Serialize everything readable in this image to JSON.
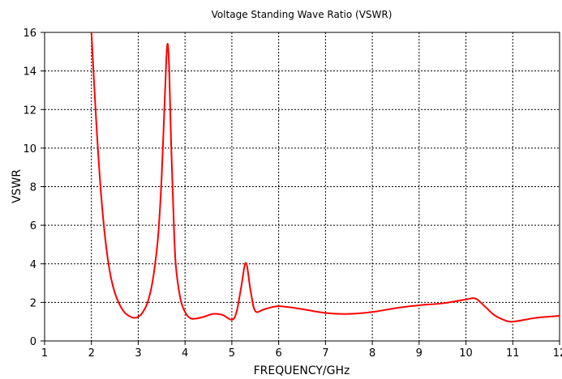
{
  "chart_data": {
    "type": "line",
    "title": "Voltage Standing Wave Ratio (VSWR)",
    "xlabel": "FREQUENCY/GHz",
    "ylabel": "VSWR",
    "xlim": [
      1,
      12
    ],
    "ylim": [
      0,
      16
    ],
    "x_ticks": [
      "1",
      "2",
      "3",
      "4",
      "5",
      "6",
      "7",
      "8",
      "9",
      "10",
      "11",
      "12"
    ],
    "y_ticks": [
      "0",
      "2",
      "4",
      "6",
      "8",
      "10",
      "12",
      "14",
      "16"
    ],
    "grid": true,
    "line_color": "#ff0000",
    "series": [
      {
        "x": [
          2.0,
          2.1,
          2.2,
          2.3,
          2.4,
          2.5,
          2.6,
          2.7,
          2.8,
          2.9,
          3.0,
          3.1,
          3.2,
          3.3,
          3.4,
          3.45,
          3.5,
          3.55,
          3.6,
          3.63,
          3.66,
          3.7,
          3.75,
          3.8,
          3.9,
          4.0,
          4.1,
          4.2,
          4.4,
          4.6,
          4.8,
          5.0,
          5.1,
          5.2,
          5.3,
          5.4,
          5.5,
          5.7,
          6.0,
          6.5,
          7.0,
          7.5,
          8.0,
          8.5,
          9.0,
          9.5,
          10.0,
          10.2,
          10.4,
          10.6,
          10.8,
          11.0,
          11.5,
          12.0
        ],
        "y": [
          16.0,
          11.5,
          7.8,
          5.2,
          3.5,
          2.5,
          1.9,
          1.5,
          1.3,
          1.2,
          1.25,
          1.5,
          2.0,
          3.0,
          4.8,
          6.3,
          8.5,
          11.5,
          14.6,
          15.4,
          14.2,
          10.5,
          6.8,
          4.0,
          2.2,
          1.5,
          1.2,
          1.15,
          1.25,
          1.4,
          1.35,
          1.1,
          1.5,
          2.8,
          4.05,
          2.6,
          1.55,
          1.65,
          1.8,
          1.65,
          1.45,
          1.4,
          1.5,
          1.7,
          1.85,
          1.95,
          2.15,
          2.2,
          1.8,
          1.35,
          1.1,
          1.0,
          1.2,
          1.3
        ]
      }
    ]
  }
}
